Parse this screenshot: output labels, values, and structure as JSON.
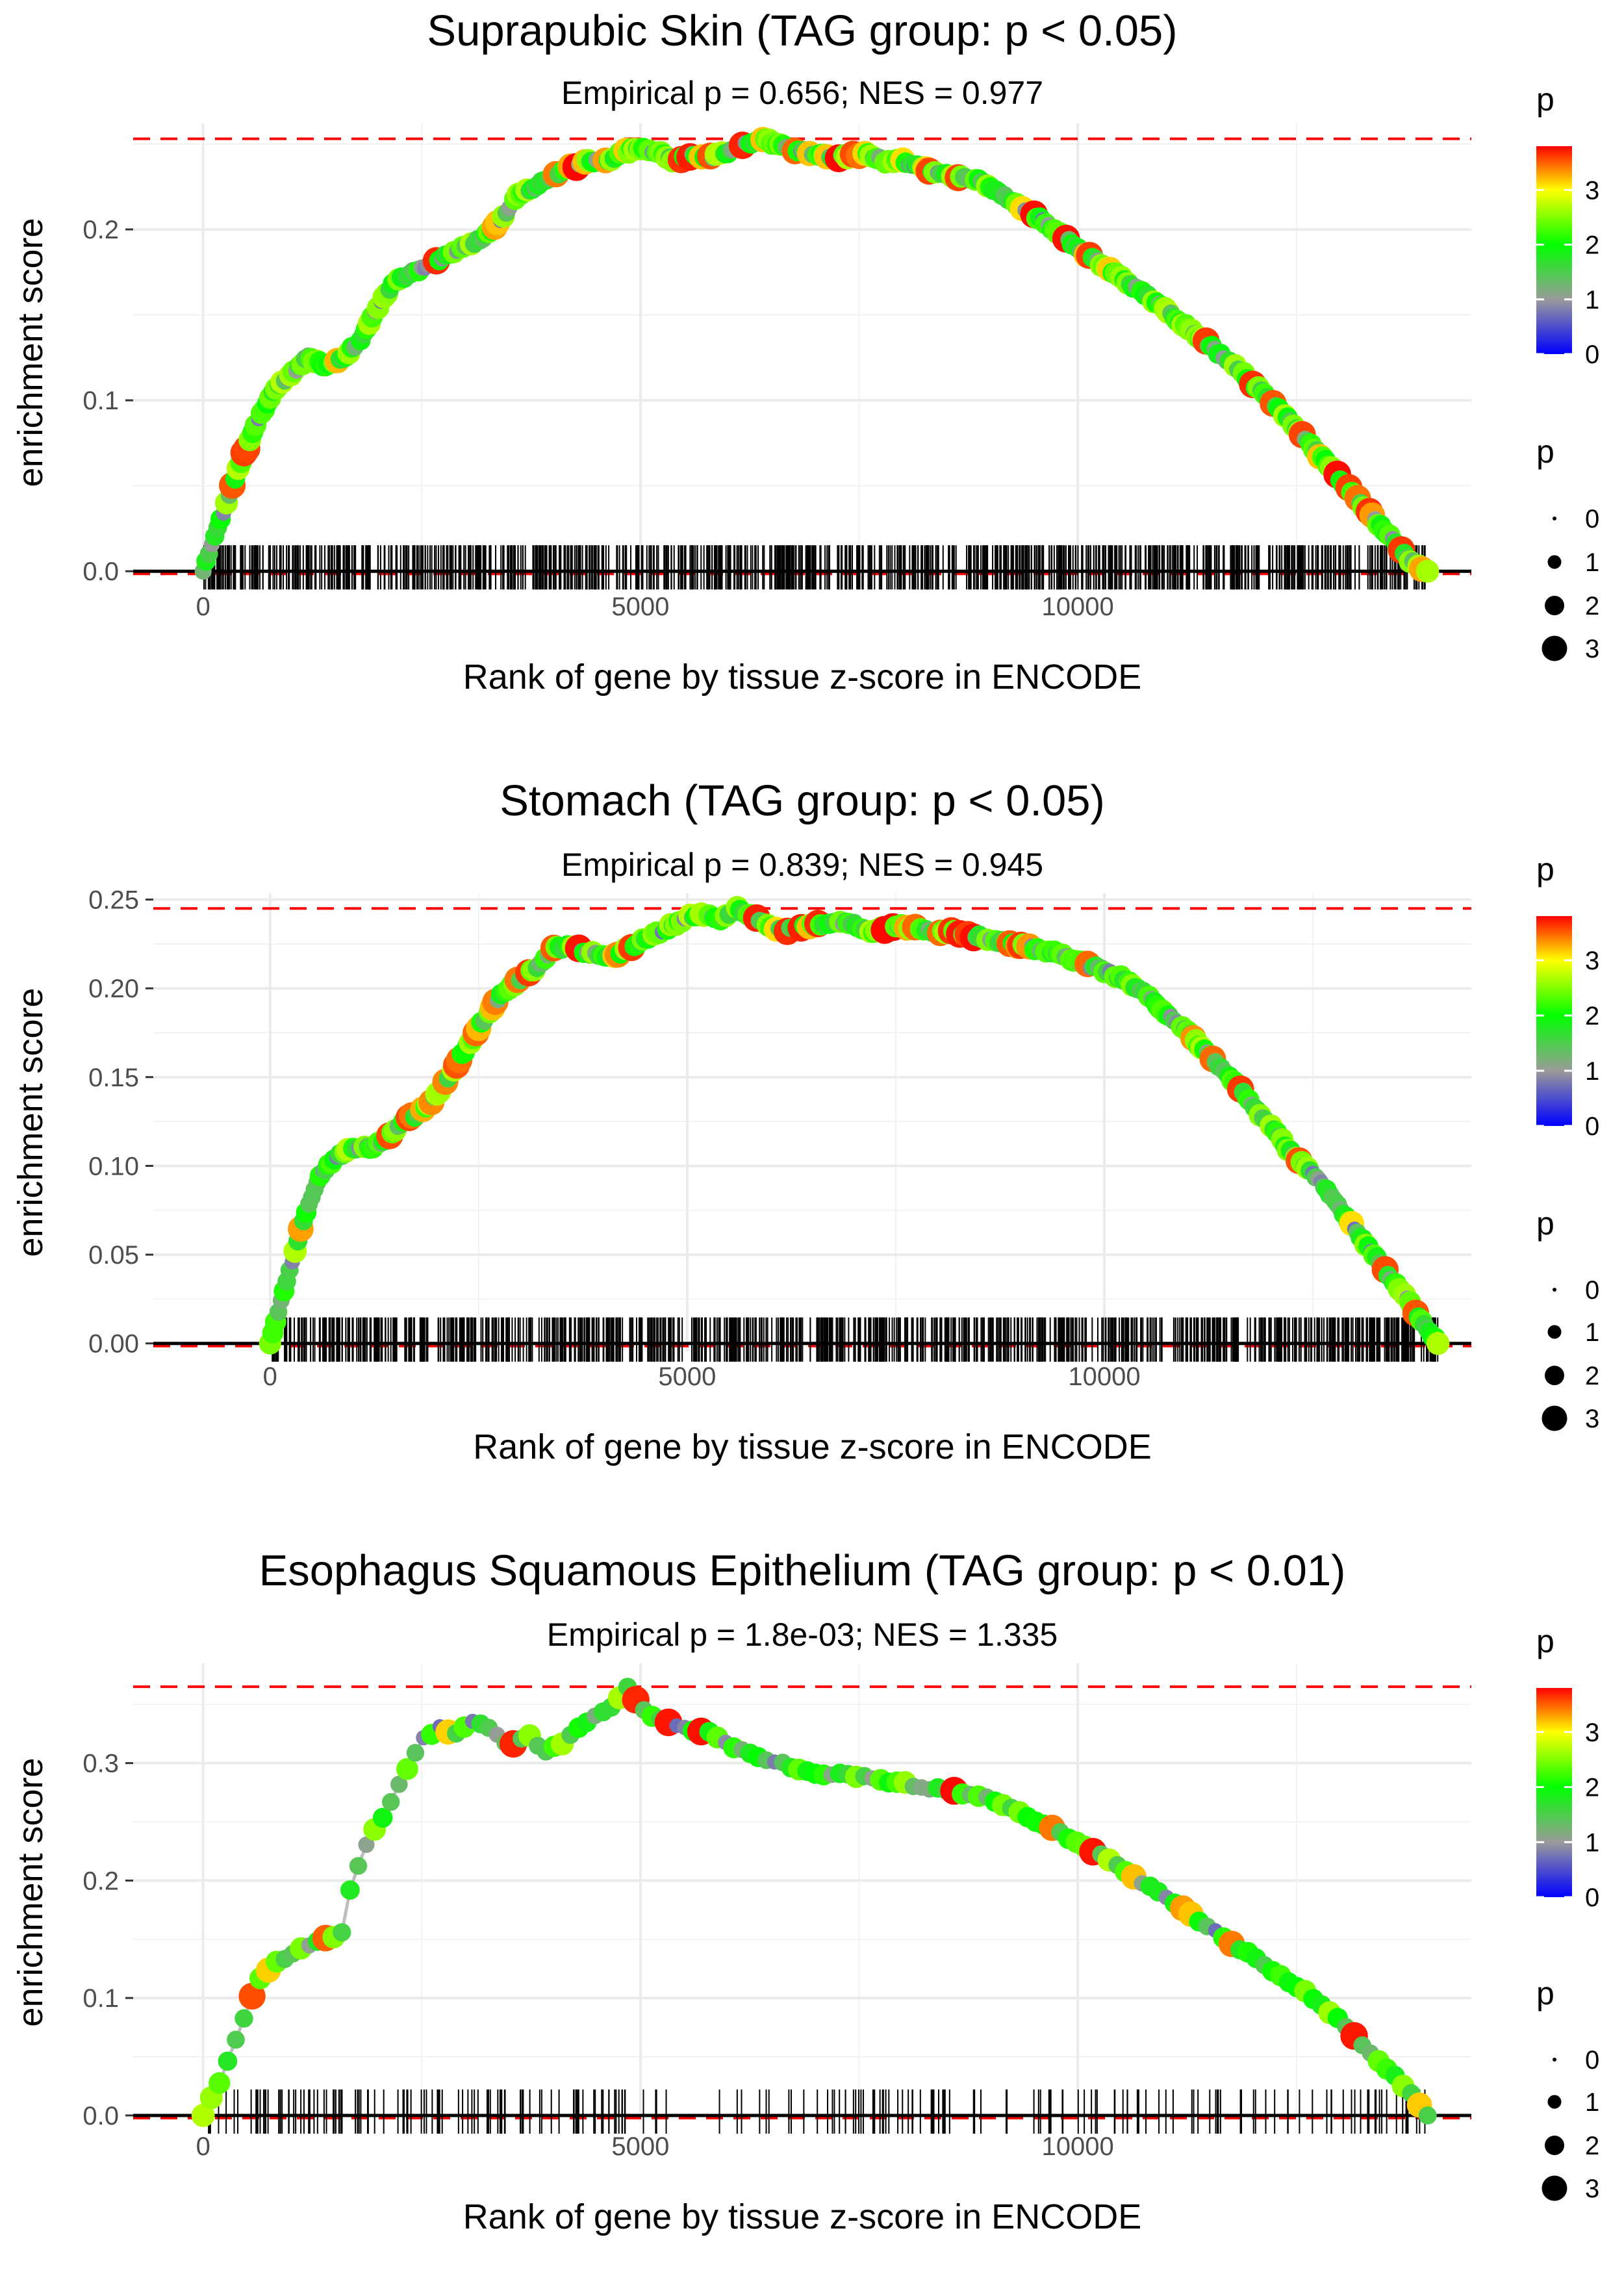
{
  "chart_data": [
    {
      "type": "line",
      "title": "Suprapubic Skin (TAG group: p < 0.05)",
      "subtitle": "Empirical p = 0.656; NES = 0.977",
      "xlabel": "Rank of gene by tissue z-score in ENCODE",
      "ylabel": "enrichment score",
      "xlim": [
        -800,
        14500
      ],
      "ylim": [
        -0.006,
        0.262
      ],
      "xticks": [
        0,
        5000,
        10000
      ],
      "xtick_labels": [
        "0",
        "5000",
        "10000"
      ],
      "yticks": [
        0.0,
        0.1,
        0.2
      ],
      "ytick_labels": [
        "0.0",
        "0.1",
        "0.2"
      ],
      "max_es": 0.253,
      "x": [
        0,
        200,
        400,
        600,
        800,
        1000,
        1200,
        1400,
        1600,
        1800,
        2000,
        2200,
        2400,
        2600,
        2800,
        3000,
        3200,
        3400,
        3600,
        3800,
        4000,
        4200,
        4400,
        4600,
        4800,
        5000,
        5200,
        5400,
        5600,
        5800,
        6000,
        6200,
        6400,
        6600,
        6800,
        7000,
        7200,
        7400,
        7600,
        7800,
        8000,
        8200,
        8400,
        8600,
        8800,
        9000,
        9200,
        9400,
        9600,
        9800,
        10000,
        10200,
        10400,
        10600,
        10800,
        11000,
        11200,
        11400,
        11600,
        11800,
        12000,
        12200,
        12400,
        12600,
        12800,
        13000,
        13200,
        13400,
        13600,
        13800,
        14000
      ],
      "y": [
        0.0,
        0.03,
        0.06,
        0.085,
        0.105,
        0.115,
        0.125,
        0.12,
        0.125,
        0.135,
        0.155,
        0.17,
        0.175,
        0.18,
        0.185,
        0.19,
        0.195,
        0.205,
        0.22,
        0.225,
        0.232,
        0.236,
        0.24,
        0.24,
        0.245,
        0.248,
        0.245,
        0.24,
        0.244,
        0.242,
        0.245,
        0.25,
        0.253,
        0.249,
        0.246,
        0.244,
        0.242,
        0.243,
        0.244,
        0.24,
        0.24,
        0.236,
        0.234,
        0.23,
        0.23,
        0.225,
        0.218,
        0.212,
        0.205,
        0.197,
        0.189,
        0.182,
        0.175,
        0.168,
        0.161,
        0.153,
        0.145,
        0.137,
        0.128,
        0.12,
        0.11,
        0.1,
        0.09,
        0.078,
        0.066,
        0.054,
        0.042,
        0.03,
        0.018,
        0.006,
        0.0
      ],
      "colorbar": {
        "title": "p",
        "ticks": [
          0,
          1,
          2,
          3
        ],
        "range": [
          0,
          3.8
        ],
        "colors": [
          "#0000ff",
          "#9a9a9a",
          "#00ff00",
          "#ffff00",
          "#ff0000"
        ]
      },
      "size_legend": {
        "title": "p",
        "values": [
          0,
          1,
          2,
          3
        ]
      }
    },
    {
      "type": "line",
      "title": "Stomach (TAG group: p < 0.05)",
      "subtitle": "Empirical p = 0.839; NES = 0.945",
      "xlabel": "Rank of gene by tissue z-score in ENCODE",
      "ylabel": "enrichment score",
      "xlim": [
        -1400,
        14400
      ],
      "ylim": [
        -0.0045,
        0.2535
      ],
      "xticks": [
        0,
        5000,
        10000
      ],
      "xtick_labels": [
        "0",
        "5000",
        "10000"
      ],
      "yticks": [
        0.0,
        0.05,
        0.1,
        0.15,
        0.2,
        0.25
      ],
      "ytick_labels": [
        "0.00",
        "0.05",
        "0.10",
        "0.15",
        "0.20",
        "0.25"
      ],
      "max_es": 0.245,
      "x": [
        0,
        200,
        400,
        600,
        800,
        1000,
        1200,
        1400,
        1600,
        1800,
        2000,
        2200,
        2400,
        2600,
        2800,
        3000,
        3200,
        3400,
        3600,
        3800,
        4000,
        4200,
        4400,
        4600,
        4800,
        5000,
        5200,
        5400,
        5600,
        5800,
        6000,
        6200,
        6400,
        6600,
        6800,
        7000,
        7200,
        7400,
        7600,
        7800,
        8000,
        8200,
        8400,
        8600,
        8800,
        9000,
        9200,
        9400,
        9600,
        9800,
        10000,
        10200,
        10400,
        10600,
        10800,
        11000,
        11200,
        11400,
        11600,
        11800,
        12000,
        12200,
        12400,
        12600,
        12800,
        13000,
        13200,
        13400,
        13600,
        13800,
        14000
      ],
      "y": [
        0.0,
        0.035,
        0.07,
        0.095,
        0.105,
        0.11,
        0.11,
        0.115,
        0.125,
        0.13,
        0.14,
        0.155,
        0.17,
        0.185,
        0.198,
        0.205,
        0.212,
        0.222,
        0.224,
        0.22,
        0.218,
        0.22,
        0.225,
        0.23,
        0.235,
        0.24,
        0.242,
        0.238,
        0.245,
        0.24,
        0.235,
        0.233,
        0.235,
        0.236,
        0.238,
        0.236,
        0.232,
        0.234,
        0.235,
        0.233,
        0.232,
        0.232,
        0.23,
        0.228,
        0.226,
        0.224,
        0.222,
        0.22,
        0.217,
        0.213,
        0.21,
        0.206,
        0.2,
        0.192,
        0.184,
        0.175,
        0.165,
        0.155,
        0.145,
        0.133,
        0.122,
        0.11,
        0.1,
        0.09,
        0.078,
        0.065,
        0.052,
        0.039,
        0.027,
        0.013,
        0.0
      ],
      "colorbar": {
        "title": "p",
        "ticks": [
          0,
          1,
          2,
          3
        ],
        "range": [
          0,
          3.8
        ],
        "colors": [
          "#0000ff",
          "#9a9a9a",
          "#00ff00",
          "#ffff00",
          "#ff0000"
        ]
      },
      "size_legend": {
        "title": "p",
        "values": [
          0,
          1,
          2,
          3
        ]
      }
    },
    {
      "type": "line",
      "title": "Esophagus Squamous Epithelium (TAG group: p < 0.01)",
      "subtitle": "Empirical p = 1.8e-03; NES = 1.335",
      "xlabel": "Rank of gene by tissue z-score in ENCODE",
      "ylabel": "enrichment score",
      "xlim": [
        -800,
        14500
      ],
      "ylim": [
        -0.005,
        0.385
      ],
      "xticks": [
        0,
        5000,
        10000
      ],
      "xtick_labels": [
        "0",
        "5000",
        "10000"
      ],
      "yticks": [
        0.0,
        0.1,
        0.2,
        0.3
      ],
      "ytick_labels": [
        "0.0",
        "0.1",
        "0.2",
        "0.3"
      ],
      "max_es": 0.365,
      "x": [
        0,
        200,
        400,
        600,
        800,
        1000,
        1200,
        1400,
        1600,
        1700,
        1900,
        2100,
        2300,
        2500,
        2700,
        2900,
        3100,
        3300,
        3500,
        3700,
        3900,
        4100,
        4300,
        4500,
        4700,
        4850,
        5100,
        5500,
        5800,
        6000,
        6200,
        6600,
        7000,
        7400,
        7800,
        8200,
        8600,
        9000,
        9400,
        9800,
        10200,
        10600,
        11000,
        11400,
        11800,
        12200,
        12600,
        13000,
        13400,
        13800,
        14000
      ],
      "y": [
        0.0,
        0.03,
        0.07,
        0.11,
        0.13,
        0.135,
        0.145,
        0.15,
        0.155,
        0.2,
        0.235,
        0.26,
        0.29,
        0.32,
        0.33,
        0.325,
        0.335,
        0.33,
        0.315,
        0.325,
        0.31,
        0.315,
        0.33,
        0.34,
        0.35,
        0.365,
        0.34,
        0.33,
        0.325,
        0.315,
        0.31,
        0.3,
        0.29,
        0.29,
        0.285,
        0.28,
        0.275,
        0.27,
        0.255,
        0.24,
        0.225,
        0.205,
        0.185,
        0.165,
        0.145,
        0.125,
        0.105,
        0.08,
        0.05,
        0.02,
        0.0
      ],
      "colorbar": {
        "title": "p",
        "ticks": [
          0,
          1,
          2,
          3
        ],
        "range": [
          0,
          3.8
        ],
        "colors": [
          "#0000ff",
          "#9a9a9a",
          "#00ff00",
          "#ffff00",
          "#ff0000"
        ]
      },
      "size_legend": {
        "title": "p",
        "values": [
          0,
          1,
          2,
          3
        ]
      }
    }
  ]
}
